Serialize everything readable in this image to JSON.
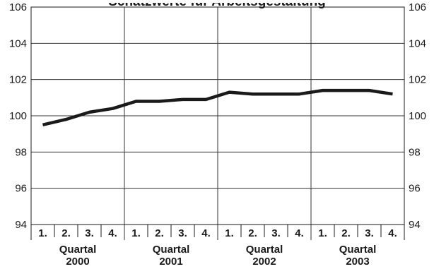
{
  "chart_data": {
    "type": "line",
    "title": "Schätzwerte für Arbeitsgestaltung",
    "ylim": [
      94,
      106
    ],
    "y_ticks": [
      "94",
      "96",
      "98",
      "100",
      "102",
      "104",
      "106"
    ],
    "grid": "horizontal and vertical (year separators)",
    "legend": "none",
    "quarter_labels": [
      "1.",
      "2.",
      "3.",
      "4.",
      "1.",
      "2.",
      "3.",
      "4.",
      "1.",
      "2.",
      "3.",
      "4.",
      "1.",
      "2.",
      "3.",
      "4."
    ],
    "year_groups": [
      {
        "label": "Quartal",
        "year": "2000"
      },
      {
        "label": "Quartal",
        "year": "2001"
      },
      {
        "label": "Quartal",
        "year": "2002"
      },
      {
        "label": "Quartal",
        "year": "2003"
      }
    ],
    "series": [
      {
        "values": [
          99.5,
          99.8,
          100.2,
          100.4,
          100.8,
          100.8,
          100.9,
          100.9,
          101.3,
          101.2,
          101.2,
          101.2,
          101.4,
          101.4,
          101.4,
          101.2
        ]
      }
    ],
    "colors": {
      "line": "#1a1a1a",
      "grid": "#333333",
      "axis": "#1a1a1a"
    }
  }
}
